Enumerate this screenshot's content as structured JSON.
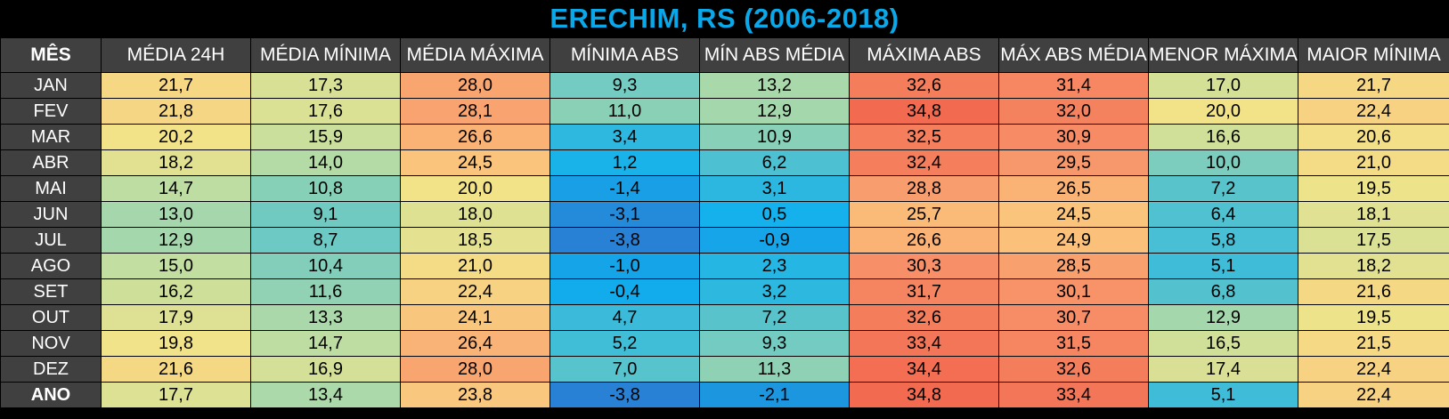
{
  "title": "ERECHIM, RS (2006-2018)",
  "chart_data": {
    "type": "table",
    "title": "ERECHIM, RS (2006-2018)",
    "columns": [
      "MÊS",
      "MÉDIA 24H",
      "MÉDIA MÍNIMA",
      "MÉDIA MÁXIMA",
      "MÍNIMA ABS",
      "MÍN ABS MÉDIA",
      "MÁXIMA ABS",
      "MÁX ABS MÉDIA",
      "MENOR MÁXIMA",
      "MAIOR MÍNIMA"
    ],
    "rows": [
      {
        "label": "JAN",
        "values": [
          "21,7",
          "17,3",
          "28,0",
          "9,3",
          "13,2",
          "32,6",
          "31,4",
          "17,0",
          "21,7"
        ]
      },
      {
        "label": "FEV",
        "values": [
          "21,8",
          "17,6",
          "28,1",
          "11,0",
          "12,9",
          "34,8",
          "32,0",
          "20,0",
          "22,4"
        ]
      },
      {
        "label": "MAR",
        "values": [
          "20,2",
          "15,9",
          "26,6",
          "3,4",
          "10,9",
          "32,5",
          "30,9",
          "16,6",
          "20,6"
        ]
      },
      {
        "label": "ABR",
        "values": [
          "18,2",
          "14,0",
          "24,5",
          "1,2",
          "6,2",
          "32,4",
          "29,5",
          "10,0",
          "21,0"
        ]
      },
      {
        "label": "MAI",
        "values": [
          "14,7",
          "10,8",
          "20,0",
          "-1,4",
          "3,1",
          "28,8",
          "26,5",
          "7,2",
          "19,5"
        ]
      },
      {
        "label": "JUN",
        "values": [
          "13,0",
          "9,1",
          "18,0",
          "-3,1",
          "0,5",
          "25,7",
          "24,5",
          "6,4",
          "18,1"
        ]
      },
      {
        "label": "JUL",
        "values": [
          "12,9",
          "8,7",
          "18,5",
          "-3,8",
          "-0,9",
          "26,6",
          "24,9",
          "5,8",
          "17,5"
        ]
      },
      {
        "label": "AGO",
        "values": [
          "15,0",
          "10,4",
          "21,0",
          "-1,0",
          "2,3",
          "30,3",
          "28,5",
          "5,1",
          "18,2"
        ]
      },
      {
        "label": "SET",
        "values": [
          "16,2",
          "11,6",
          "22,4",
          "-0,4",
          "3,2",
          "31,7",
          "30,1",
          "6,8",
          "21,6"
        ]
      },
      {
        "label": "OUT",
        "values": [
          "17,9",
          "13,3",
          "24,1",
          "4,7",
          "7,2",
          "32,6",
          "30,7",
          "12,9",
          "19,5"
        ]
      },
      {
        "label": "NOV",
        "values": [
          "19,8",
          "14,7",
          "26,4",
          "5,2",
          "9,3",
          "33,4",
          "31,5",
          "16,5",
          "21,5"
        ]
      },
      {
        "label": "DEZ",
        "values": [
          "21,6",
          "16,9",
          "28,0",
          "7,0",
          "11,3",
          "34,4",
          "32,6",
          "17,4",
          "22,4"
        ]
      },
      {
        "label": "ANO",
        "values": [
          "17,7",
          "13,4",
          "23,8",
          "-3,8",
          "-2,1",
          "34,8",
          "33,4",
          "5,1",
          "22,4"
        ],
        "total": true
      }
    ],
    "color_scale": {
      "stops": [
        {
          "value": -4,
          "color": "#2a7fd4"
        },
        {
          "value": 0,
          "color": "#0fb0ee"
        },
        {
          "value": 5,
          "color": "#3ebcd8"
        },
        {
          "value": 10,
          "color": "#7ccdbd"
        },
        {
          "value": 15,
          "color": "#c2dea0"
        },
        {
          "value": 20,
          "color": "#f2e389"
        },
        {
          "value": 25,
          "color": "#fbc07a"
        },
        {
          "value": 30,
          "color": "#f7936a"
        },
        {
          "value": 35,
          "color": "#f2694f"
        }
      ]
    }
  }
}
